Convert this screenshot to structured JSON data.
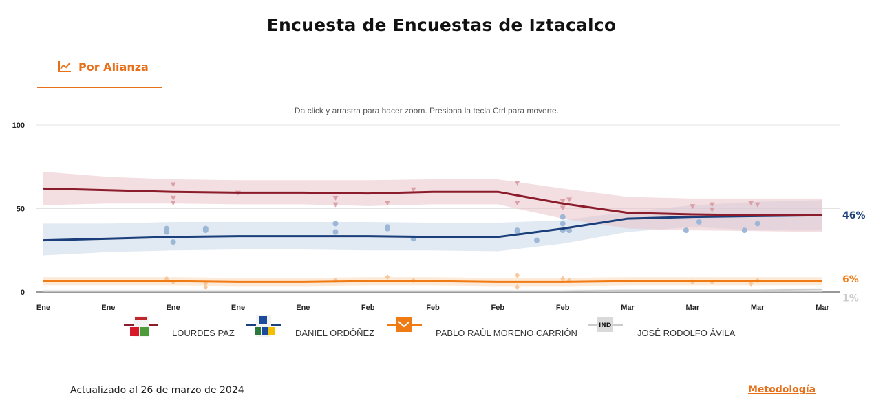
{
  "page": {
    "title": "Encuesta de Encuestas de Iztacalco",
    "tab_label": "Por Alianza",
    "zoom_hint": "Da click y arrastra para hacer zoom. Presiona la tecla Ctrl para moverte.",
    "updated": "Actualizado al 26 de marzo de 2024",
    "methodology_link": "Metodología"
  },
  "chart_data": {
    "type": "line",
    "title": "Encuesta de Encuestas de Iztacalco",
    "xlabel": "",
    "ylabel": "",
    "ylim": [
      0,
      100
    ],
    "y_ticks": [
      0,
      50,
      100
    ],
    "x_ticks": [
      "Ene",
      "Ene",
      "Ene",
      "Ene",
      "Ene",
      "Feb",
      "Feb",
      "Feb",
      "Feb",
      "Mar",
      "Mar",
      "Mar",
      "Mar"
    ],
    "x": [
      0,
      1,
      2,
      3,
      4,
      5,
      6,
      7,
      8,
      9,
      10,
      11,
      12
    ],
    "grid": true,
    "legend_position": "bottom",
    "series": [
      {
        "name": "LOURDES PAZ",
        "color": "#8b1c2c",
        "band_color": "#e9c3c8",
        "final_label": "",
        "trend": [
          62,
          61,
          60,
          59.5,
          59.5,
          59,
          60,
          60,
          53,
          47.5,
          46.5,
          46,
          46
        ],
        "band_upper": [
          72,
          69,
          67.5,
          67,
          67,
          67,
          67.5,
          67.5,
          62,
          57,
          56,
          56,
          56
        ],
        "band_lower": [
          52,
          53,
          53,
          52.5,
          52.5,
          51.5,
          52.5,
          52.5,
          44,
          38,
          37,
          36.5,
          36
        ],
        "points": [
          [
            2,
            64
          ],
          [
            2,
            56
          ],
          [
            2,
            53
          ],
          [
            3,
            59
          ],
          [
            4.5,
            56
          ],
          [
            4.5,
            52
          ],
          [
            5.3,
            53
          ],
          [
            5.7,
            61
          ],
          [
            7.3,
            65
          ],
          [
            7.3,
            53
          ],
          [
            8,
            54
          ],
          [
            8,
            50
          ],
          [
            8.1,
            55
          ],
          [
            10,
            51
          ],
          [
            10.3,
            52
          ],
          [
            10.3,
            49
          ],
          [
            10.9,
            53
          ],
          [
            11,
            52
          ]
        ]
      },
      {
        "name": "DANIEL ORDÓÑEZ",
        "color": "#1a3f7a",
        "band_color": "#c8d7ea",
        "final_label": "46%",
        "trend": [
          31,
          32,
          33,
          33.5,
          33.5,
          33.5,
          33,
          33,
          38,
          44,
          45,
          45.5,
          46
        ],
        "band_upper": [
          41,
          41,
          42,
          42,
          42,
          42,
          41.5,
          41.5,
          43,
          48,
          52,
          54,
          55
        ],
        "band_lower": [
          22,
          24,
          25,
          25.5,
          25.5,
          25,
          25,
          24.5,
          29,
          36,
          39,
          37,
          37
        ],
        "points": [
          [
            1.9,
            38
          ],
          [
            1.9,
            36
          ],
          [
            2,
            30
          ],
          [
            2.5,
            38
          ],
          [
            2.5,
            37
          ],
          [
            4.5,
            41
          ],
          [
            4.5,
            36
          ],
          [
            5.3,
            39
          ],
          [
            5.3,
            38
          ],
          [
            5.7,
            32
          ],
          [
            7.3,
            37
          ],
          [
            7.3,
            36
          ],
          [
            7.6,
            31
          ],
          [
            8,
            45
          ],
          [
            8,
            41
          ],
          [
            8,
            37
          ],
          [
            8.1,
            37
          ],
          [
            9.9,
            37
          ],
          [
            10.1,
            42
          ],
          [
            10.8,
            37
          ],
          [
            11,
            41
          ]
        ]
      },
      {
        "name": "PABLO RAÚL MORENO CARRIÓN",
        "color": "#f07a13",
        "band_color": "#fbd9b8",
        "final_label": "6%",
        "trend": [
          6.5,
          6.5,
          6.5,
          6,
          6,
          6.5,
          6.5,
          6,
          6,
          6.5,
          6.5,
          6.5,
          6.5
        ],
        "band_upper": [
          9,
          9,
          9,
          8.5,
          8.5,
          9,
          9,
          8.5,
          8.5,
          9,
          9,
          9,
          9
        ],
        "band_lower": [
          4,
          4,
          4,
          3.5,
          3.5,
          4,
          4,
          3.5,
          3.5,
          4,
          4,
          4,
          4
        ],
        "points": [
          [
            1.9,
            8
          ],
          [
            2,
            6
          ],
          [
            2.5,
            5
          ],
          [
            2.5,
            3
          ],
          [
            4.5,
            7
          ],
          [
            5.3,
            9
          ],
          [
            5.7,
            7
          ],
          [
            7.3,
            10
          ],
          [
            7.3,
            3
          ],
          [
            8,
            8
          ],
          [
            8.1,
            7
          ],
          [
            10,
            6
          ],
          [
            10.3,
            6
          ],
          [
            10.9,
            5
          ],
          [
            11,
            7
          ]
        ]
      },
      {
        "name": "JOSÉ RODOLFO ÁVILA",
        "color": "#cccccc",
        "band_color": "#eeeeee",
        "final_label": "1%",
        "trend": [
          0.5,
          0.5,
          0.5,
          0.5,
          0.5,
          0.5,
          0.5,
          0.5,
          0.5,
          1,
          1,
          1,
          1.5
        ],
        "band_upper": [
          1.5,
          1.5,
          1.5,
          1.5,
          1.5,
          1.5,
          1.5,
          1.5,
          1.5,
          2,
          2,
          2,
          2.5
        ],
        "band_lower": [
          0,
          0,
          0,
          0,
          0,
          0,
          0,
          0,
          0,
          0,
          0,
          0,
          0
        ],
        "points": []
      }
    ]
  }
}
